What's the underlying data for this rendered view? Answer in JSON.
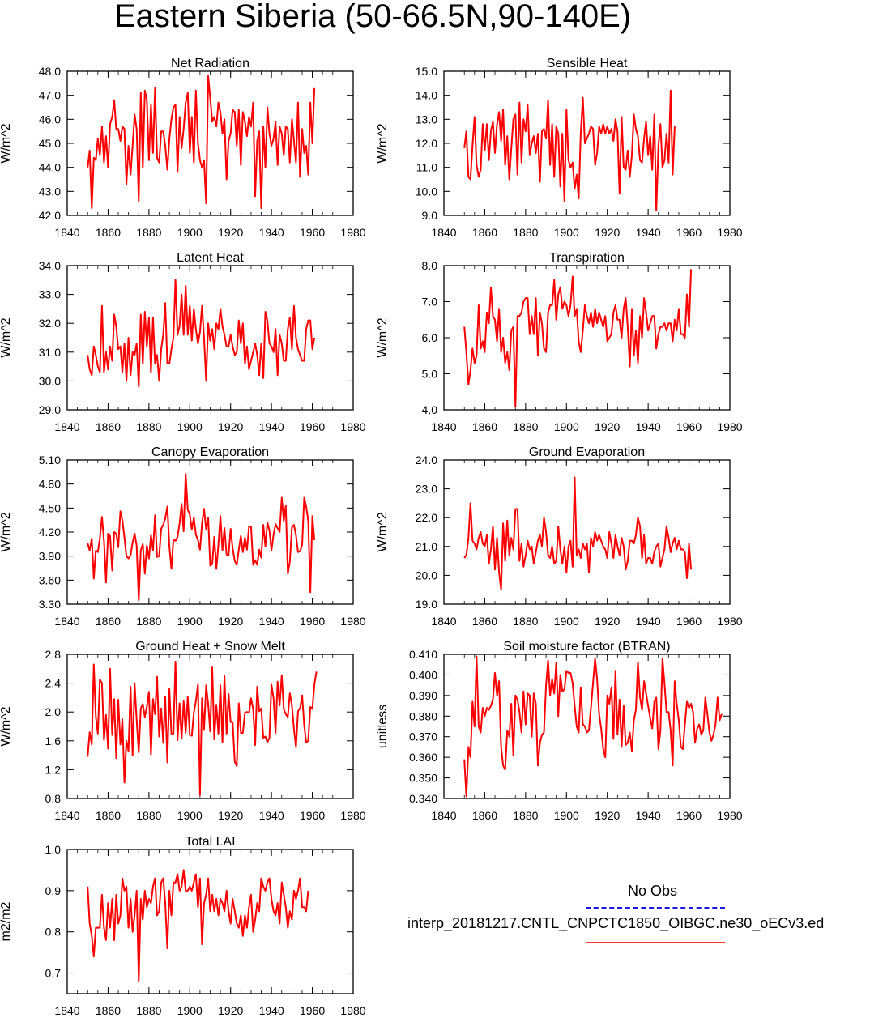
{
  "figure": {
    "title": "Eastern Siberia (50-66.5N,90-140E)",
    "line_color": "#ff0000",
    "obs_color": "#1a1adf"
  },
  "legend": {
    "obs_label": "No Obs",
    "model_label": "interp_20181217.CNTL_CNPCTC1850_OIBGC.ne30_oECv3.ed"
  },
  "chart_data": [
    {
      "type": "line",
      "title": "Net Radiation",
      "ylabel": "W/m^2",
      "xlim": [
        1840,
        1980
      ],
      "xticks": [
        "1840",
        "1860",
        "1880",
        "1900",
        "1920",
        "1940",
        "1960",
        "1980"
      ],
      "ylim": [
        42.0,
        48.0
      ],
      "yticks": [
        "42.0",
        "43.0",
        "44.0",
        "45.0",
        "46.0",
        "47.0",
        "48.0"
      ],
      "x_start": 1850,
      "values": [
        44.0,
        44.7,
        42.3,
        44.4,
        44.3,
        45.2,
        44.5,
        45.7,
        44.2,
        45.3,
        44.0,
        45.8,
        46.1,
        46.8,
        45.6,
        45.6,
        45.1,
        45.7,
        45.6,
        43.3,
        44.9,
        43.7,
        44.9,
        46.2,
        45.6,
        42.6,
        47.1,
        44.0,
        47.2,
        46.8,
        44.3,
        46.6,
        44.6,
        47.3,
        44.4,
        44.2,
        45.5,
        45.5,
        44.9,
        43.9,
        45.2,
        46.0,
        46.5,
        46.6,
        43.8,
        46.1,
        44.8,
        45.6,
        46.7,
        47.1,
        44.6,
        46.1,
        44.2,
        47.2,
        45.0,
        44.3,
        44.0,
        44.3,
        42.5,
        47.8,
        46.9,
        45.9,
        46.1,
        45.7,
        46.7,
        46.3,
        45.4,
        46.0,
        43.5,
        45.1,
        45.4,
        46.4,
        46.3,
        44.9,
        46.4,
        44.1,
        46.3,
        45.9,
        45.3,
        46.1,
        45.7,
        46.7,
        42.8,
        45.1,
        45.5,
        42.3,
        45.7,
        44.0,
        46.5,
        45.4,
        44.9,
        45.2,
        45.9,
        44.1,
        45.7,
        45.4,
        44.5,
        45.7,
        45.6,
        44.2,
        46.0,
        45.1,
        44.2,
        46.7,
        43.6,
        45.6,
        44.6,
        44.9,
        43.7,
        46.7,
        45.0,
        47.3
      ]
    },
    {
      "type": "line",
      "title": "Sensible Heat",
      "ylabel": "W/m^2",
      "xlim": [
        1840,
        1980
      ],
      "xticks": [
        "1840",
        "1860",
        "1880",
        "1900",
        "1920",
        "1940",
        "1960",
        "1980"
      ],
      "ylim": [
        9.0,
        15.0
      ],
      "yticks": [
        "9.0",
        "10.0",
        "11.0",
        "12.0",
        "13.0",
        "14.0",
        "15.0"
      ],
      "x_start": 1850,
      "values": [
        11.8,
        12.5,
        10.6,
        10.5,
        11.9,
        13.1,
        11.1,
        10.6,
        10.9,
        12.8,
        11.7,
        12.8,
        11.3,
        12.5,
        12.9,
        11.6,
        12.8,
        13.3,
        12.1,
        13.4,
        11.1,
        12.3,
        10.5,
        11.8,
        13.0,
        13.2,
        10.7,
        13.7,
        11.2,
        13.0,
        12.5,
        13.6,
        11.5,
        12.0,
        12.3,
        11.6,
        12.4,
        10.4,
        12.5,
        12.6,
        12.2,
        13.8,
        11.1,
        12.8,
        10.6,
        12.7,
        12.4,
        10.2,
        12.4,
        9.6,
        13.4,
        11.3,
        11.0,
        11.2,
        10.1,
        10.7,
        9.7,
        12.4,
        13.9,
        12.0,
        12.2,
        12.4,
        12.7,
        12.6,
        11.1,
        11.6,
        12.7,
        12.4,
        12.8,
        12.4,
        12.7,
        12.4,
        12.6,
        12.1,
        13.0,
        12.5,
        9.9,
        13.1,
        11.0,
        10.9,
        11.7,
        10.6,
        11.5,
        13.2,
        12.6,
        12.3,
        11.3,
        11.2,
        12.2,
        12.9,
        11.5,
        12.3,
        10.9,
        13.2,
        9.2,
        11.9,
        12.8,
        11.0,
        11.3,
        12.4,
        11.2,
        14.2,
        10.7,
        12.7
      ]
    },
    {
      "type": "line",
      "title": "Latent Heat",
      "ylabel": "W/m^2",
      "xlim": [
        1840,
        1980
      ],
      "xticks": [
        "1840",
        "1860",
        "1880",
        "1900",
        "1920",
        "1940",
        "1960",
        "1980"
      ],
      "ylim": [
        29.0,
        34.0
      ],
      "yticks": [
        "29.0",
        "30.0",
        "31.0",
        "32.0",
        "33.0",
        "34.0"
      ],
      "x_start": 1850,
      "values": [
        30.9,
        30.4,
        30.2,
        31.2,
        30.9,
        30.5,
        30.3,
        32.6,
        30.3,
        31.0,
        30.4,
        31.2,
        30.7,
        32.3,
        31.9,
        31.1,
        31.2,
        30.3,
        31.3,
        30.0,
        31.5,
        30.2,
        31.0,
        30.9,
        31.3,
        29.8,
        32.3,
        30.6,
        32.4,
        31.2,
        32.2,
        30.3,
        32.2,
        30.6,
        30.9,
        30.0,
        31.1,
        31.6,
        32.7,
        30.6,
        30.6,
        31.1,
        31.5,
        33.5,
        31.6,
        31.9,
        33.0,
        31.6,
        33.3,
        31.6,
        32.6,
        31.4,
        32.5,
        31.8,
        31.3,
        31.7,
        32.6,
        31.5,
        30.0,
        32.0,
        31.4,
        31.8,
        31.1,
        32.0,
        31.8,
        32.5,
        31.9,
        31.6,
        31.2,
        31.2,
        31.6,
        31.2,
        30.9,
        31.0,
        32.1,
        31.3,
        32.0,
        30.6,
        31.2,
        30.4,
        30.7,
        31.0,
        31.3,
        30.9,
        30.2,
        31.3,
        30.1,
        32.4,
        32.1,
        31.3,
        31.2,
        31.0,
        31.8,
        30.2,
        31.6,
        31.3,
        30.7,
        30.7,
        31.8,
        32.2,
        31.1,
        32.6,
        31.5,
        31.1,
        30.9,
        30.7,
        30.7,
        31.8,
        32.1,
        32.1,
        31.1,
        31.5
      ]
    },
    {
      "type": "line",
      "title": "Transpiration",
      "ylabel": "W/m^2",
      "xlim": [
        1840,
        1980
      ],
      "xticks": [
        "1840",
        "1860",
        "1880",
        "1900",
        "1920",
        "1940",
        "1960",
        "1980"
      ],
      "ylim": [
        4.0,
        8.0
      ],
      "yticks": [
        "4.0",
        "5.0",
        "6.0",
        "7.0",
        "8.0"
      ],
      "x_start": 1850,
      "values": [
        6.3,
        5.6,
        4.7,
        5.1,
        5.7,
        5.3,
        5.5,
        6.9,
        5.7,
        5.9,
        5.6,
        6.7,
        6.4,
        7.4,
        6.6,
        6.5,
        5.9,
        6.8,
        5.6,
        6.0,
        5.3,
        5.6,
        5.1,
        6.2,
        6.3,
        4.1,
        6.6,
        6.6,
        6.7,
        7.0,
        7.1,
        7.1,
        6.1,
        6.6,
        6.1,
        7.1,
        5.5,
        6.7,
        6.4,
        5.7,
        5.6,
        6.7,
        6.9,
        6.9,
        7.6,
        6.5,
        7.2,
        7.4,
        6.8,
        7.0,
        6.9,
        6.6,
        6.9,
        7.7,
        6.6,
        6.8,
        5.9,
        5.6,
        6.2,
        6.9,
        6.6,
        6.4,
        6.7,
        6.3,
        6.8,
        6.4,
        6.7,
        6.5,
        6.3,
        6.6,
        5.9,
        6.0,
        6.1,
        6.7,
        6.9,
        6.5,
        6.5,
        6.0,
        6.8,
        7.1,
        6.3,
        5.2,
        6.8,
        5.5,
        6.2,
        5.3,
        6.6,
        6.0,
        7.1,
        6.7,
        6.2,
        6.4,
        6.6,
        6.6,
        5.7,
        6.1,
        6.3,
        6.3,
        6.4,
        6.2,
        6.4,
        6.4,
        5.9,
        6.5,
        6.2,
        6.8,
        6.1,
        6.1,
        6.0,
        7.2,
        6.3,
        7.9
      ]
    },
    {
      "type": "line",
      "title": "Canopy Evaporation",
      "ylabel": "W/m^2",
      "xlim": [
        1840,
        1980
      ],
      "xticks": [
        "1840",
        "1860",
        "1880",
        "1900",
        "1920",
        "1940",
        "1960",
        "1980"
      ],
      "ylim": [
        3.3,
        5.1
      ],
      "yticks": [
        "3.30",
        "3.60",
        "3.90",
        "4.20",
        "4.50",
        "4.80",
        "5.10"
      ],
      "x_start": 1850,
      "values": [
        4.06,
        3.97,
        4.12,
        3.62,
        3.97,
        3.95,
        4.12,
        4.39,
        4.09,
        3.57,
        4.18,
        4.15,
        3.72,
        4.2,
        4.18,
        4.01,
        4.46,
        4.35,
        4.13,
        3.9,
        3.87,
        3.91,
        4.07,
        4.18,
        4.03,
        3.35,
        3.97,
        4.05,
        3.68,
        4.03,
        3.87,
        4.16,
        3.97,
        4.41,
        3.89,
        3.9,
        4.24,
        4.29,
        4.37,
        4.52,
        4.02,
        3.74,
        4.11,
        4.09,
        4.14,
        4.31,
        4.55,
        4.21,
        4.93,
        4.48,
        4.42,
        4.23,
        4.38,
        4.17,
        4.1,
        3.98,
        4.31,
        4.49,
        4.23,
        4.38,
        3.78,
        3.8,
        4.14,
        3.74,
        4.04,
        4.4,
        3.97,
        4.25,
        3.92,
        3.91,
        4.24,
        4.0,
        3.84,
        3.79,
        3.98,
        4.15,
        3.95,
        4.13,
        3.98,
        4.27,
        4.27,
        3.79,
        3.85,
        3.79,
        3.98,
        3.88,
        4.29,
        4.02,
        4.32,
        4.22,
        3.97,
        4.17,
        4.3,
        4.25,
        4.2,
        4.63,
        4.34,
        4.53,
        3.68,
        3.83,
        4.26,
        4.29,
        4.16,
        3.95,
        3.96,
        4.04,
        4.63,
        4.52,
        4.34,
        3.45,
        4.4,
        4.1
      ]
    },
    {
      "type": "line",
      "title": "Ground Evaporation",
      "ylabel": "W/m^2",
      "xlim": [
        1840,
        1980
      ],
      "xticks": [
        "1840",
        "1860",
        "1880",
        "1900",
        "1920",
        "1940",
        "1960",
        "1980"
      ],
      "ylim": [
        19.0,
        24.0
      ],
      "yticks": [
        "19.0",
        "20.0",
        "21.0",
        "22.0",
        "23.0",
        "24.0"
      ],
      "x_start": 1850,
      "values": [
        20.6,
        20.7,
        21.3,
        22.5,
        21.2,
        21.1,
        20.9,
        21.3,
        21.5,
        21.1,
        21.0,
        21.4,
        20.4,
        20.9,
        21.7,
        20.2,
        21.3,
        20.1,
        19.5,
        21.8,
        20.5,
        21.9,
        20.7,
        21.3,
        20.9,
        22.3,
        22.3,
        20.5,
        21.1,
        20.3,
        20.7,
        21.2,
        20.9,
        21.0,
        20.4,
        20.8,
        21.2,
        21.4,
        21.0,
        22.0,
        21.5,
        20.7,
        20.6,
        21.0,
        20.4,
        20.5,
        21.7,
        20.9,
        20.4,
        21.0,
        20.1,
        21.0,
        21.2,
        20.3,
        23.4,
        20.7,
        20.9,
        20.6,
        21.1,
        20.9,
        21.1,
        20.1,
        21.3,
        21.0,
        21.5,
        21.2,
        21.4,
        21.2,
        21.0,
        20.9,
        20.6,
        21.5,
        21.1,
        20.6,
        21.4,
        21.0,
        20.7,
        21.3,
        21.0,
        20.2,
        20.5,
        21.2,
        21.2,
        21.1,
        21.4,
        22.0,
        21.7,
        20.6,
        21.4,
        20.4,
        20.6,
        20.6,
        20.4,
        20.8,
        21.0,
        21.1,
        20.3,
        20.6,
        20.9,
        21.7,
        21.3,
        20.8,
        21.1,
        21.3,
        20.9,
        21.2,
        20.9,
        20.9,
        20.8,
        19.9,
        21.1,
        20.2
      ]
    },
    {
      "type": "line",
      "title": "Ground Heat + Snow Melt",
      "ylabel": "W/m^2",
      "xlim": [
        1840,
        1980
      ],
      "xticks": [
        "1840",
        "1860",
        "1880",
        "1900",
        "1920",
        "1940",
        "1960",
        "1980"
      ],
      "ylim": [
        0.8,
        2.8
      ],
      "yticks": [
        "0.8",
        "1.2",
        "1.6",
        "2.0",
        "2.4",
        "2.8"
      ],
      "x_start": 1850,
      "values": [
        1.38,
        1.72,
        1.55,
        2.66,
        1.94,
        1.7,
        2.45,
        2.4,
        1.61,
        1.96,
        1.49,
        2.6,
        1.68,
        2.18,
        1.36,
        2.17,
        1.55,
        1.9,
        1.02,
        1.6,
        1.46,
        2.35,
        1.4,
        2.4,
        1.89,
        1.44,
        2.05,
        2.11,
        1.93,
        2.07,
        2.28,
        1.41,
        2.18,
        1.97,
        2.49,
        1.66,
        2.05,
        1.57,
        2.21,
        1.3,
        2.32,
        1.7,
        1.7,
        2.7,
        1.61,
        2.12,
        1.63,
        2.15,
        1.71,
        2.21,
        1.68,
        1.67,
        1.99,
        2.15,
        2.38,
        0.85,
        2.19,
        1.75,
        2.37,
        2.11,
        1.73,
        2.62,
        1.62,
        2.1,
        1.7,
        2.37,
        1.58,
        2.5,
        1.7,
        2.25,
        1.86,
        1.86,
        1.31,
        1.25,
        2.12,
        1.71,
        1.71,
        1.99,
        2.0,
        1.99,
        2.19,
        2.04,
        1.54,
        2.35,
        2.01,
        2.05,
        1.64,
        1.66,
        1.58,
        1.64,
        2.38,
        2.19,
        1.71,
        2.42,
        2.09,
        2.51,
        2.04,
        1.97,
        1.93,
        2.26,
        2.09,
        1.76,
        1.51,
        2.01,
        2.05,
        2.23,
        1.82,
        1.58,
        1.6,
        2.07,
        2.04,
        2.38,
        2.56
      ]
    },
    {
      "type": "line",
      "title": "Soil moisture factor (BTRAN)",
      "ylabel": "unitless",
      "xlim": [
        1840,
        1980
      ],
      "xticks": [
        "1840",
        "1860",
        "1880",
        "1900",
        "1920",
        "1940",
        "1960",
        "1980"
      ],
      "ylim": [
        0.34,
        0.41
      ],
      "yticks": [
        "0.340",
        "0.350",
        "0.360",
        "0.370",
        "0.380",
        "0.390",
        "0.400",
        "0.410"
      ],
      "x_start": 1850,
      "values": [
        0.359,
        0.341,
        0.365,
        0.36,
        0.387,
        0.375,
        0.409,
        0.375,
        0.372,
        0.384,
        0.38,
        0.384,
        0.383,
        0.385,
        0.388,
        0.401,
        0.39,
        0.397,
        0.365,
        0.356,
        0.354,
        0.373,
        0.37,
        0.386,
        0.361,
        0.39,
        0.388,
        0.382,
        0.372,
        0.392,
        0.376,
        0.391,
        0.39,
        0.37,
        0.391,
        0.386,
        0.356,
        0.367,
        0.371,
        0.372,
        0.395,
        0.407,
        0.39,
        0.398,
        0.391,
        0.406,
        0.38,
        0.4,
        0.392,
        0.393,
        0.402,
        0.401,
        0.401,
        0.396,
        0.385,
        0.375,
        0.372,
        0.394,
        0.376,
        0.375,
        0.372,
        0.373,
        0.384,
        0.396,
        0.408,
        0.398,
        0.381,
        0.374,
        0.364,
        0.36,
        0.39,
        0.386,
        0.394,
        0.369,
        0.402,
        0.371,
        0.388,
        0.365,
        0.385,
        0.366,
        0.367,
        0.372,
        0.363,
        0.378,
        0.383,
        0.406,
        0.389,
        0.383,
        0.397,
        0.391,
        0.385,
        0.379,
        0.374,
        0.387,
        0.389,
        0.364,
        0.373,
        0.408,
        0.396,
        0.382,
        0.382,
        0.373,
        0.356,
        0.397,
        0.386,
        0.378,
        0.365,
        0.364,
        0.376,
        0.387,
        0.384,
        0.386,
        0.382,
        0.367,
        0.374,
        0.376,
        0.371,
        0.373,
        0.389,
        0.381,
        0.372,
        0.368,
        0.371,
        0.376,
        0.389,
        0.378,
        0.381
      ]
    },
    {
      "type": "line",
      "title": "Total LAI",
      "ylabel": "m2/m2",
      "xlim": [
        1840,
        1980
      ],
      "xticks": [
        "1840",
        "1860",
        "1880",
        "1900",
        "1920",
        "1940",
        "1960",
        "1980"
      ],
      "ylim": [
        0.65,
        1.0
      ],
      "yticks": [
        "0.7",
        "0.8",
        "0.9",
        "1.0"
      ],
      "x_start": 1850,
      "values": [
        0.91,
        0.82,
        0.79,
        0.74,
        0.81,
        0.81,
        0.81,
        0.89,
        0.81,
        0.78,
        0.87,
        0.81,
        0.88,
        0.78,
        0.89,
        0.82,
        0.84,
        0.93,
        0.9,
        0.91,
        0.81,
        0.88,
        0.8,
        0.84,
        0.9,
        0.68,
        0.88,
        0.83,
        0.9,
        0.86,
        0.88,
        0.87,
        0.91,
        0.93,
        0.84,
        0.85,
        0.92,
        0.93,
        0.87,
        0.76,
        0.9,
        0.84,
        0.92,
        0.92,
        0.94,
        0.9,
        0.91,
        0.95,
        0.9,
        0.9,
        0.91,
        0.9,
        0.92,
        0.94,
        0.86,
        0.93,
        0.77,
        0.87,
        0.89,
        0.93,
        0.85,
        0.89,
        0.85,
        0.88,
        0.84,
        0.88,
        0.87,
        0.85,
        0.9,
        0.85,
        0.82,
        0.88,
        0.85,
        0.82,
        0.81,
        0.84,
        0.79,
        0.84,
        0.81,
        0.86,
        0.89,
        0.8,
        0.83,
        0.87,
        0.85,
        0.93,
        0.91,
        0.9,
        0.92,
        0.93,
        0.88,
        0.85,
        0.84,
        0.87,
        0.82,
        0.92,
        0.89,
        0.86,
        0.81,
        0.85,
        0.83,
        0.9,
        0.88,
        0.9,
        0.93,
        0.86,
        0.86,
        0.85,
        0.9
      ]
    }
  ]
}
